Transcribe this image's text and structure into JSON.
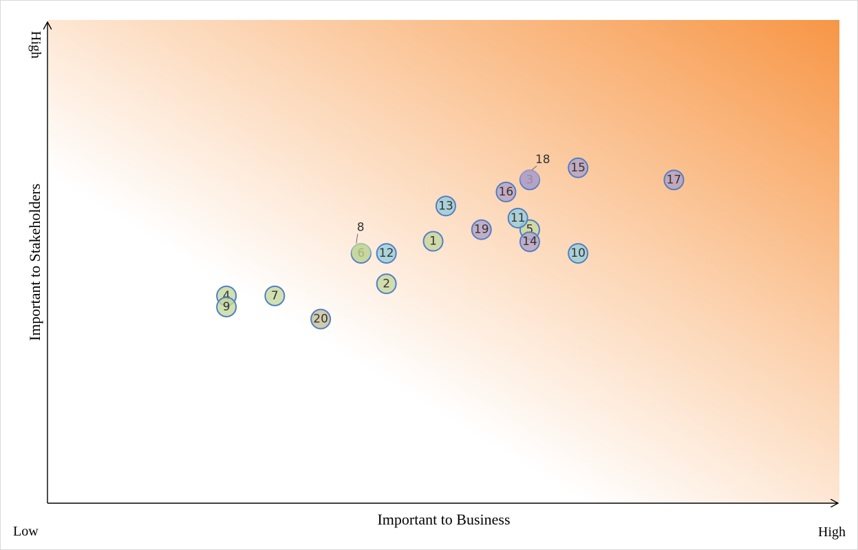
{
  "chart_data": {
    "type": "scatter",
    "title": "",
    "xlabel": "Important to Business",
    "ylabel": "Important to Stakeholders",
    "x_low_label": "Low",
    "x_high_label": "High",
    "y_high_label": "High",
    "xlim": [
      0,
      100
    ],
    "ylim": [
      0,
      100
    ],
    "grid": false,
    "legend": "none",
    "colors": {
      "green": "#c4d79b",
      "blue": "#92cddc",
      "purple": "#b1a0c7",
      "olive": "#c4bd97",
      "gradient_strong": "#f79646",
      "gradient_weak": "#ffffff"
    },
    "points": [
      {
        "label": "1",
        "x": 48.7,
        "y": 54.2,
        "color": "green"
      },
      {
        "label": "2",
        "x": 42.8,
        "y": 45.4,
        "color": "green"
      },
      {
        "label": "3",
        "x": 60.9,
        "y": 66.9,
        "color": "purple"
      },
      {
        "label": "4",
        "x": 22.6,
        "y": 42.9,
        "color": "green"
      },
      {
        "label": "5",
        "x": 60.9,
        "y": 56.6,
        "color": "green"
      },
      {
        "label": "6",
        "x": 39.6,
        "y": 51.7,
        "color": "green"
      },
      {
        "label": "7",
        "x": 28.7,
        "y": 42.9,
        "color": "green"
      },
      {
        "label": "8",
        "x": 39.6,
        "y": 51.9,
        "color": "green",
        "offset_label": true
      },
      {
        "label": "9",
        "x": 22.6,
        "y": 40.6,
        "color": "green"
      },
      {
        "label": "10",
        "x": 67.0,
        "y": 51.7,
        "color": "blue"
      },
      {
        "label": "11",
        "x": 59.4,
        "y": 59.0,
        "color": "blue"
      },
      {
        "label": "12",
        "x": 42.8,
        "y": 51.7,
        "color": "blue"
      },
      {
        "label": "13",
        "x": 50.3,
        "y": 61.5,
        "color": "blue"
      },
      {
        "label": "14",
        "x": 60.9,
        "y": 54.1,
        "color": "purple"
      },
      {
        "label": "15",
        "x": 67.0,
        "y": 69.4,
        "color": "purple"
      },
      {
        "label": "16",
        "x": 57.9,
        "y": 64.4,
        "color": "purple"
      },
      {
        "label": "17",
        "x": 79.1,
        "y": 66.9,
        "color": "purple"
      },
      {
        "label": "18",
        "x": 60.9,
        "y": 67.1,
        "color": "purple",
        "offset_label": true
      },
      {
        "label": "19",
        "x": 54.8,
        "y": 56.6,
        "color": "purple"
      },
      {
        "label": "20",
        "x": 34.5,
        "y": 38.1,
        "color": "olive"
      }
    ]
  }
}
